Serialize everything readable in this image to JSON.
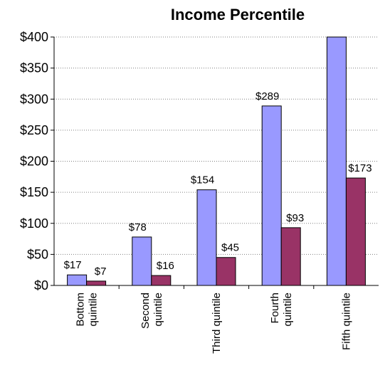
{
  "chart_data": {
    "type": "bar",
    "title": "Income Percentile",
    "categories": [
      [
        "Bottom",
        "quintile"
      ],
      [
        "Second",
        "quintile"
      ],
      [
        "Third quintile"
      ],
      [
        "Fourth",
        "quintile"
      ],
      [
        "Fifth quintile"
      ]
    ],
    "series": [
      {
        "values": [
          17,
          78,
          154,
          289,
          405
        ],
        "color": "#9999FF",
        "data_labels": [
          "$17",
          "$78",
          "$154",
          "$289",
          ""
        ]
      },
      {
        "values": [
          7,
          16,
          45,
          93,
          173
        ],
        "color": "#993366",
        "data_labels": [
          "$7",
          "$16",
          "$45",
          "$93",
          "$173"
        ]
      }
    ],
    "y_ticks": [
      "$0",
      "$50",
      "$100",
      "$150",
      "$200",
      "$250",
      "$300",
      "$350",
      "$400"
    ],
    "ylim": [
      0,
      400
    ],
    "grid": "horizontal dotted",
    "legend": "none"
  }
}
